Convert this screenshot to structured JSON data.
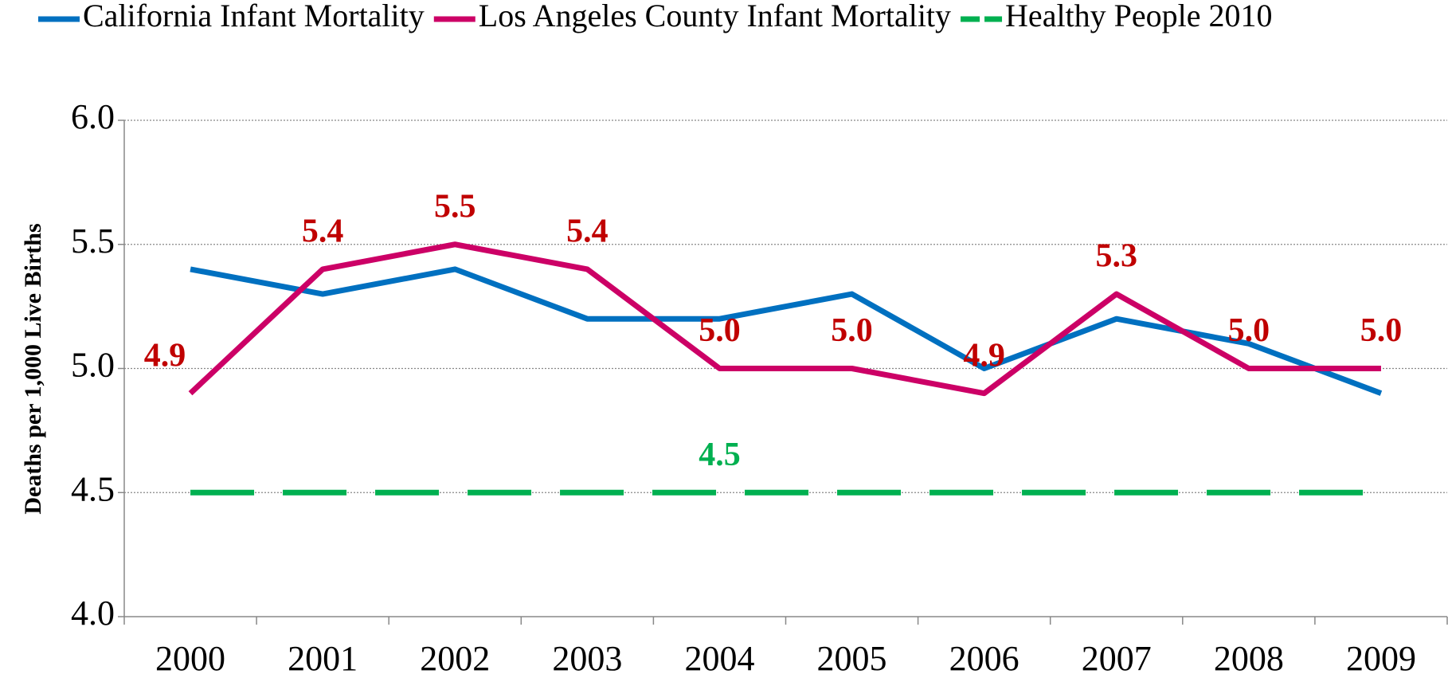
{
  "chart_data": {
    "type": "line",
    "y_label": "Deaths per 1,000 Live Births",
    "categories": [
      "2000",
      "2001",
      "2002",
      "2003",
      "2004",
      "2005",
      "2006",
      "2007",
      "2008",
      "2009"
    ],
    "series": [
      {
        "name": "California Infant Mortality",
        "color": "#0070c0",
        "values": [
          5.4,
          5.3,
          5.4,
          5.2,
          5.2,
          5.3,
          5.0,
          5.2,
          5.1,
          4.9
        ]
      },
      {
        "name": "Los Angeles County Infant Mortality",
        "color": "#cc0066",
        "values": [
          4.9,
          5.4,
          5.5,
          5.4,
          5.0,
          5.0,
          4.9,
          5.3,
          5.0,
          5.0
        ],
        "value_labels": [
          "4.9",
          "5.4",
          "5.5",
          "5.4",
          "5.0",
          "5.0",
          "4.9",
          "5.3",
          "5.0",
          "5.0"
        ],
        "label_color": "#c00000"
      },
      {
        "name": "Healthy People 2010",
        "color": "#00b050",
        "dashed": true,
        "values": [
          4.5,
          4.5,
          4.5,
          4.5,
          4.5,
          4.5,
          4.5,
          4.5,
          4.5,
          4.5
        ],
        "value_labels": [
          null,
          null,
          null,
          null,
          "4.5",
          null,
          null,
          null,
          null,
          null
        ],
        "label_color": "#00b050"
      }
    ],
    "ylim": [
      4.0,
      6.0
    ],
    "yticks": [
      {
        "value": 4.0,
        "label": "4.0"
      },
      {
        "value": 4.5,
        "label": "4.5"
      },
      {
        "value": 5.0,
        "label": "5.0"
      },
      {
        "value": 5.5,
        "label": "5.5"
      },
      {
        "value": 6.0,
        "label": "6.0"
      }
    ],
    "grid": true,
    "legend": "top"
  }
}
